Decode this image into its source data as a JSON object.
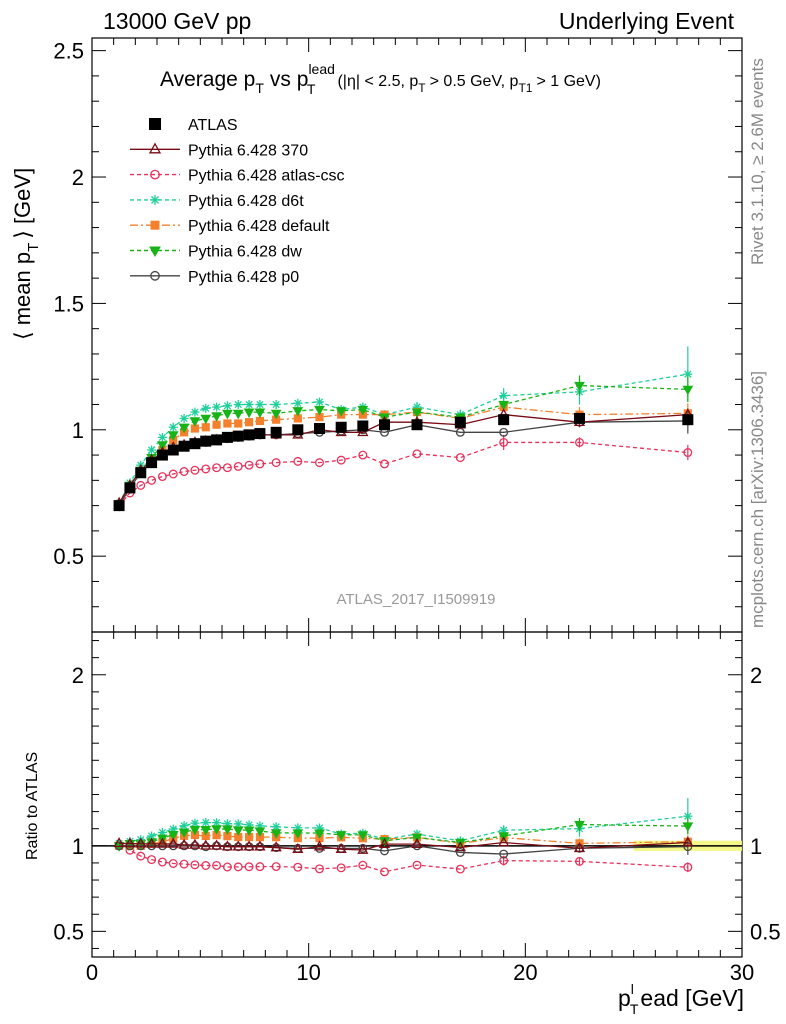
{
  "header": {
    "left": "13000 GeV pp",
    "right": "Underlying Event"
  },
  "side_labels": {
    "rivet": "Rivet 3.1.10, ≥ 2.6M events",
    "mcplots": "mcplots.cern.ch [arXiv:1306.3436]"
  },
  "analysis_id": "ATLAS_2017_I1509919",
  "chart_data": [
    {
      "type": "scatter",
      "title": {
        "main": "Average p",
        "main_sub": "T",
        "vs": "vs p",
        "vs_sub": "T",
        "vs_sup": "lead",
        "cuts_1": "(|η| < 2.5, p",
        "cuts_1_sub": "T",
        "cuts_2": "> 0.5 GeV, p",
        "cuts_2_sub": "T1",
        "cuts_3": "> 1 GeV)"
      },
      "ylabel": {
        "pre": "⟨ mean p",
        "sub": "T",
        "post": "⟩ [GeV]"
      },
      "xlim": [
        0,
        30
      ],
      "ylim": [
        0.2,
        2.55
      ],
      "y_ticks": [
        "0.5",
        "1",
        "1.5",
        "2",
        "2.5"
      ],
      "y_tick_values": [
        0.5,
        1,
        1.5,
        2,
        2.5
      ],
      "x": [
        1.25,
        1.75,
        2.25,
        2.75,
        3.25,
        3.75,
        4.25,
        4.75,
        5.25,
        5.75,
        6.25,
        6.75,
        7.25,
        7.75,
        8.5,
        9.5,
        10.5,
        11.5,
        12.5,
        13.5,
        15.0,
        17.0,
        19.0,
        22.5,
        27.5
      ],
      "legend_position": "top-left",
      "series": [
        {
          "name": "ATLAS",
          "color": "#000000",
          "marker": "square",
          "dash": "none",
          "values": [
            0.7,
            0.77,
            0.83,
            0.87,
            0.9,
            0.92,
            0.935,
            0.945,
            0.955,
            0.96,
            0.97,
            0.975,
            0.98,
            0.985,
            0.99,
            1.0,
            1.005,
            1.01,
            1.015,
            1.02,
            1.02,
            1.03,
            1.04,
            1.045,
            1.04
          ]
        },
        {
          "name": "Pythia 6.428 370",
          "color": "#7a0a14",
          "marker": "triangle-open",
          "dash": "none",
          "values": [
            0.71,
            0.78,
            0.84,
            0.88,
            0.91,
            0.93,
            0.94,
            0.95,
            0.955,
            0.96,
            0.965,
            0.97,
            0.975,
            0.98,
            0.98,
            0.98,
            1.0,
            0.99,
            0.99,
            1.03,
            1.03,
            1.02,
            1.06,
            1.03,
            1.06
          ]
        },
        {
          "name": "Pythia 6.428 atlas-csc",
          "color": "#e8305a",
          "marker": "circle-open",
          "dash": "4,3",
          "values": [
            0.7,
            0.75,
            0.78,
            0.8,
            0.815,
            0.825,
            0.835,
            0.84,
            0.845,
            0.85,
            0.85,
            0.855,
            0.86,
            0.865,
            0.87,
            0.875,
            0.87,
            0.88,
            0.9,
            0.865,
            0.905,
            0.89,
            0.95,
            0.95,
            0.91
          ],
          "errors": [
            0,
            0,
            0,
            0,
            0,
            0,
            0,
            0,
            0,
            0,
            0,
            0,
            0,
            0,
            0,
            0,
            0,
            0,
            0,
            0,
            0,
            0,
            0.03,
            0.02,
            0.03
          ]
        },
        {
          "name": "Pythia 6.428 d6t",
          "color": "#1fcf9a",
          "marker": "star",
          "dash": "4,3",
          "values": [
            0.71,
            0.79,
            0.86,
            0.92,
            0.97,
            1.01,
            1.045,
            1.07,
            1.085,
            1.09,
            1.095,
            1.1,
            1.1,
            1.1,
            1.1,
            1.105,
            1.11,
            1.08,
            1.09,
            1.06,
            1.09,
            1.06,
            1.135,
            1.15,
            1.22
          ],
          "errors": [
            0,
            0,
            0,
            0,
            0,
            0,
            0,
            0,
            0,
            0,
            0,
            0,
            0,
            0,
            0,
            0,
            0,
            0,
            0,
            0,
            0.02,
            0.02,
            0.03,
            0.05,
            0.11
          ]
        },
        {
          "name": "Pythia 6.428 default",
          "color": "#f4802d",
          "marker": "square-filled",
          "dash": "8,3,2,3",
          "values": [
            0.7,
            0.77,
            0.83,
            0.88,
            0.92,
            0.96,
            0.99,
            1.005,
            1.01,
            1.02,
            1.025,
            1.025,
            1.03,
            1.035,
            1.04,
            1.045,
            1.05,
            1.06,
            1.06,
            1.06,
            1.07,
            1.045,
            1.09,
            1.06,
            1.065
          ],
          "errors": [
            0,
            0,
            0,
            0,
            0,
            0,
            0,
            0,
            0,
            0,
            0,
            0,
            0,
            0,
            0,
            0,
            0,
            0,
            0,
            0,
            0,
            0,
            0,
            0.03,
            0.04
          ]
        },
        {
          "name": "Pythia 6.428 dw",
          "color": "#17b317",
          "marker": "triangle-down-filled",
          "dash": "4,3",
          "values": [
            0.7,
            0.78,
            0.84,
            0.89,
            0.94,
            0.98,
            1.01,
            1.035,
            1.045,
            1.055,
            1.065,
            1.065,
            1.07,
            1.07,
            1.065,
            1.075,
            1.08,
            1.075,
            1.08,
            1.05,
            1.07,
            1.05,
            1.1,
            1.175,
            1.16
          ],
          "errors": [
            0,
            0,
            0,
            0,
            0,
            0,
            0,
            0,
            0,
            0,
            0,
            0,
            0,
            0,
            0,
            0,
            0,
            0,
            0,
            0,
            0,
            0,
            0,
            0.04,
            0.05
          ]
        },
        {
          "name": "Pythia 6.428 p0",
          "color": "#444444",
          "marker": "circle-open",
          "dash": "none",
          "values": [
            0.7,
            0.77,
            0.83,
            0.87,
            0.9,
            0.92,
            0.935,
            0.945,
            0.95,
            0.96,
            0.965,
            0.97,
            0.975,
            0.98,
            0.98,
            0.985,
            0.99,
            0.995,
            1.0,
            0.99,
            1.02,
            0.99,
            0.99,
            1.03,
            1.035
          ],
          "errors": [
            0,
            0,
            0,
            0,
            0,
            0,
            0,
            0,
            0,
            0,
            0,
            0,
            0,
            0,
            0,
            0,
            0,
            0,
            0,
            0,
            0,
            0,
            0,
            0.02,
            0.05
          ]
        }
      ]
    },
    {
      "type": "scatter",
      "ylabel": "Ratio to ATLAS",
      "xlabel": {
        "pre": "p",
        "sub": "T",
        "sup": "l",
        "post": "ead [GeV]"
      },
      "xlim": [
        0,
        30
      ],
      "ylim": [
        0.35,
        2.25
      ],
      "x_ticks": [
        "0",
        "10",
        "20",
        "30"
      ],
      "x_tick_values": [
        0,
        10,
        20,
        30
      ],
      "y_ticks": [
        "0.5",
        "1",
        "2"
      ],
      "y_tick_values": [
        0.5,
        1,
        2
      ],
      "reference": 1.0,
      "ratio_from": "upper"
    }
  ]
}
